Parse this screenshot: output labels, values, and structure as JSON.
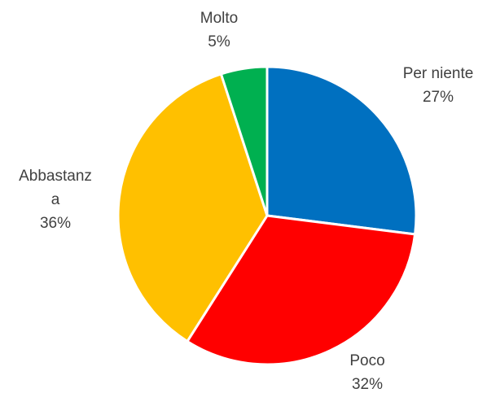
{
  "chart_data": {
    "type": "pie",
    "title": "",
    "slices": [
      {
        "name_lines": [
          "Per niente"
        ],
        "value": 27,
        "pct_label": "27%",
        "color": "#0070C0"
      },
      {
        "name_lines": [
          "Poco"
        ],
        "value": 32,
        "pct_label": "32%",
        "color": "#FF0000"
      },
      {
        "name_lines": [
          "Abbastanz",
          "a"
        ],
        "value": 36,
        "pct_label": "36%",
        "color": "#FFC000"
      },
      {
        "name_lines": [
          "Molto"
        ],
        "value": 5,
        "pct_label": "5%",
        "color": "#00B050"
      }
    ],
    "start_angle_deg": 0,
    "direction": "clockwise",
    "legend": "none"
  }
}
